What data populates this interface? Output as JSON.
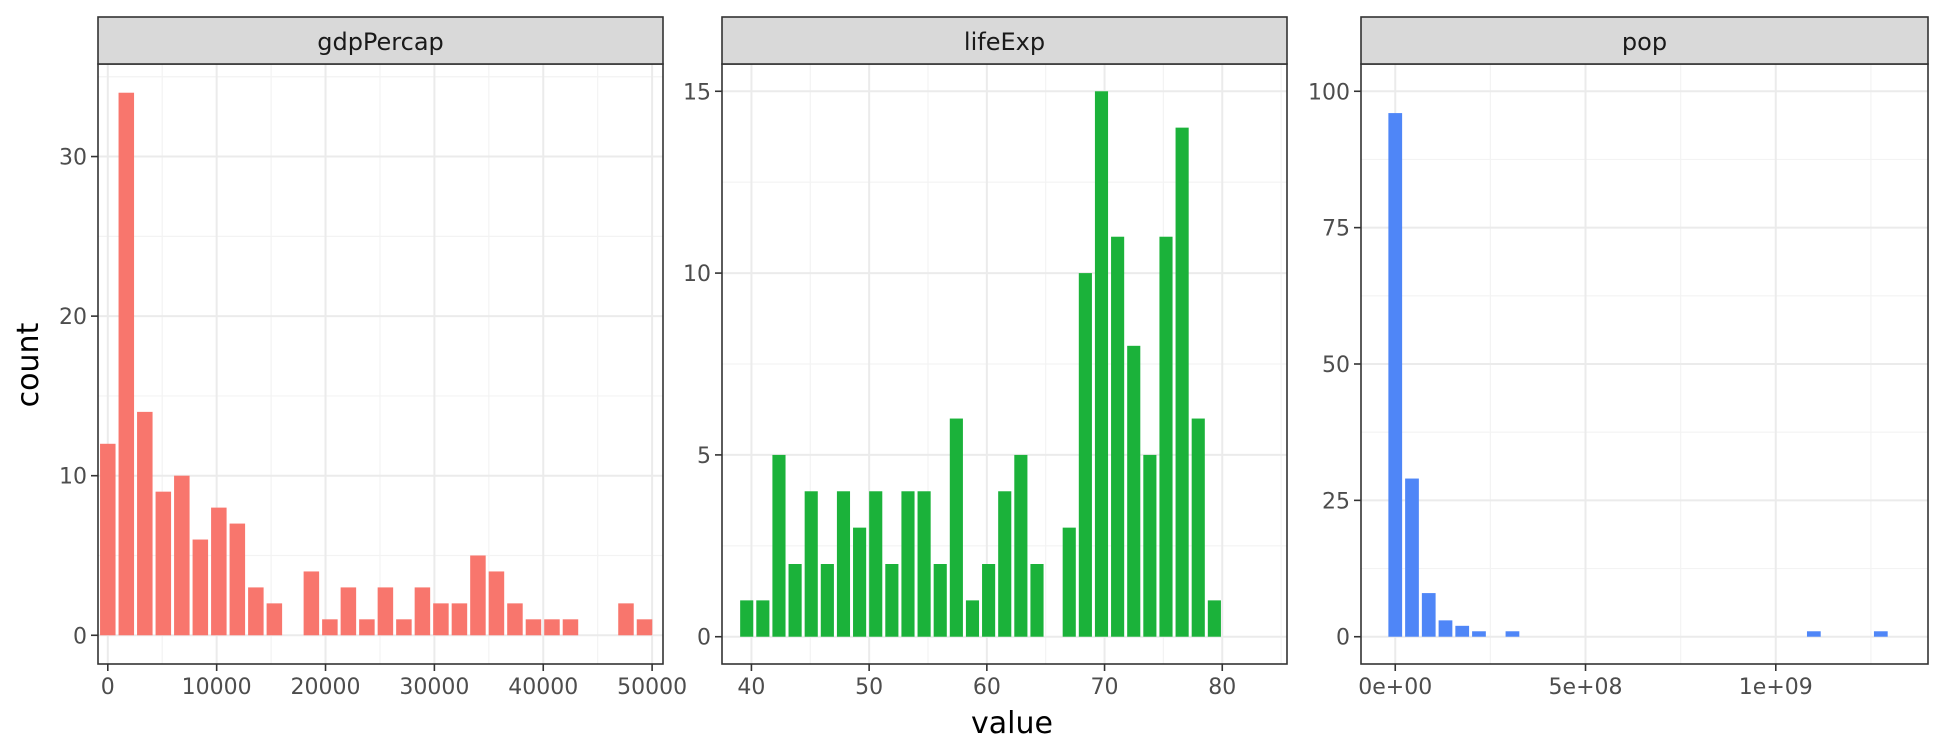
{
  "colors": {
    "gdpPercap": "#F8766D",
    "lifeExp": "#1BB23A",
    "pop": "#4F86F7"
  },
  "chart_data": {
    "type": "bar",
    "xlabel": "value",
    "ylabel": "count",
    "facets": [
      {
        "name": "gdpPercap",
        "xlim": [
          -900,
          51000
        ],
        "ylim": [
          -1.8,
          35.8
        ],
        "xticks": [
          0,
          10000,
          20000,
          30000,
          40000,
          50000
        ],
        "xtick_labels": [
          "0",
          "10000",
          "20000",
          "30000",
          "40000",
          "50000"
        ],
        "yticks": [
          0,
          10,
          20,
          30
        ],
        "ytick_labels": [
          "0",
          "10",
          "20",
          "30"
        ],
        "bin_width": 1700,
        "bin_start": 0,
        "counts": [
          12,
          34,
          14,
          9,
          10,
          6,
          8,
          7,
          3,
          2,
          0,
          4,
          1,
          3,
          1,
          3,
          1,
          3,
          2,
          2,
          5,
          4,
          2,
          1,
          1,
          1,
          0,
          0,
          2,
          1
        ]
      },
      {
        "name": "lifeExp",
        "xlim": [
          37.5,
          85.5
        ],
        "ylim": [
          -0.75,
          15.75
        ],
        "xticks": [
          40,
          50,
          60,
          70,
          80
        ],
        "xtick_labels": [
          "40",
          "50",
          "60",
          "70",
          "80"
        ],
        "yticks": [
          0,
          5,
          10,
          15
        ],
        "ytick_labels": [
          "0",
          "5",
          "10",
          "15"
        ],
        "bin_width": 1.37,
        "bin_start": 39.6,
        "counts": [
          1,
          1,
          5,
          2,
          4,
          2,
          4,
          3,
          4,
          2,
          4,
          4,
          2,
          6,
          1,
          2,
          4,
          5,
          2,
          0,
          3,
          10,
          15,
          11,
          8,
          5,
          11,
          14,
          6,
          1
        ]
      },
      {
        "name": "pop",
        "xlim": [
          -90000000,
          1400000000
        ],
        "ylim": [
          -5,
          105
        ],
        "xticks": [
          0,
          500000000,
          1000000000
        ],
        "xtick_labels": [
          "0e+00",
          "5e+08",
          "1e+09"
        ],
        "yticks": [
          0,
          25,
          50,
          75,
          100
        ],
        "ytick_labels": [
          "0",
          "25",
          "50",
          "75",
          "100"
        ],
        "bin_width": 44000000,
        "bin_start": 0,
        "counts": [
          96,
          29,
          8,
          3,
          2,
          1,
          0,
          1,
          0,
          0,
          0,
          0,
          0,
          0,
          0,
          0,
          0,
          0,
          0,
          0,
          0,
          0,
          0,
          0,
          0,
          1,
          0,
          0,
          0,
          1
        ]
      }
    ]
  }
}
